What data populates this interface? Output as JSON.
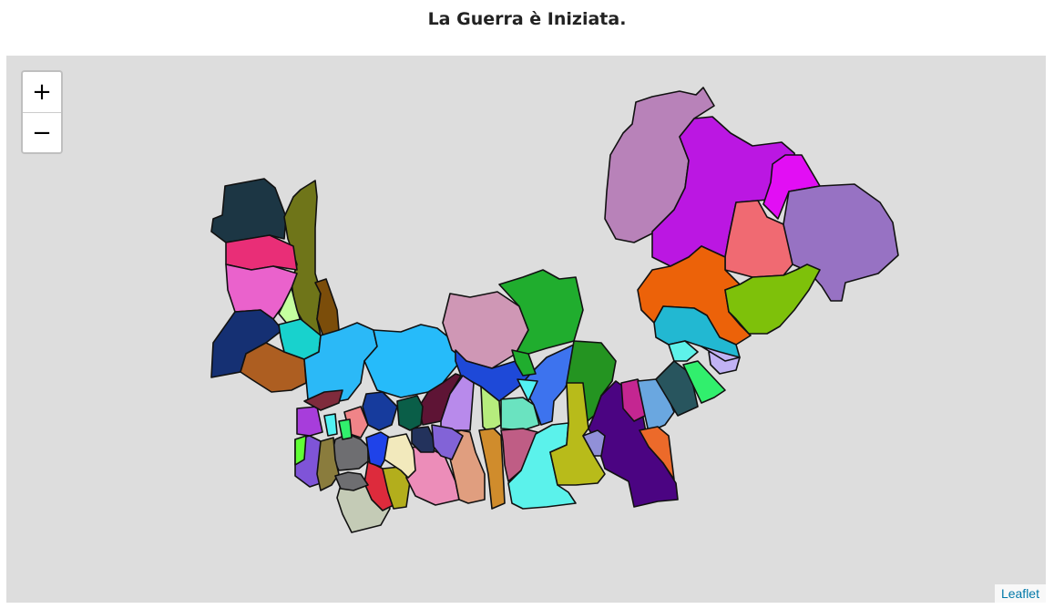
{
  "page": {
    "title": "La Guerra è Iniziata."
  },
  "map": {
    "zoom_in_label": "+",
    "zoom_out_label": "−",
    "attribution": "Leaflet",
    "background_color": "#dddddd",
    "border_color": "#111111",
    "region_colors": [
      "#1c3644",
      "#6f7519",
      "#e92e77",
      "#ea62cc",
      "#c5ff9f",
      "#7b4d0a",
      "#153073",
      "#ad5e21",
      "#18d2cd",
      "#2bb9f7",
      "#26bbfa",
      "#cf97b5",
      "#20ad2e",
      "#1e49d8",
      "#5e1435",
      "#b88aeb",
      "#b6ec7d",
      "#6ae3c0",
      "#3d73ee",
      "#249421",
      "#52f2f3",
      "#4b0482",
      "#c42691",
      "#6aa7e0",
      "#28555e",
      "#31ef6d",
      "#ec6a2a",
      "#b882b9",
      "#bb17e2",
      "#e20ef4",
      "#f06a72",
      "#9772c3",
      "#ec6209",
      "#7ec10a",
      "#22b8d2",
      "#c1b2f4",
      "#5ef2ea",
      "#c4cbb6",
      "#dd2b3c",
      "#b3ae1c",
      "#ec8db9",
      "#e09e7f",
      "#d08c2c",
      "#bf5d85",
      "#5bf2eb",
      "#b8bb1a",
      "#9190d8",
      "#6e6e71",
      "#1f43e9",
      "#f2e9bc",
      "#23325c",
      "#8263d7",
      "#7f54d8",
      "#60ff34",
      "#8a7c3d",
      "#f08488",
      "#a73ddb",
      "#163b9d",
      "#0a5e48",
      "#7f2b3c"
    ]
  }
}
